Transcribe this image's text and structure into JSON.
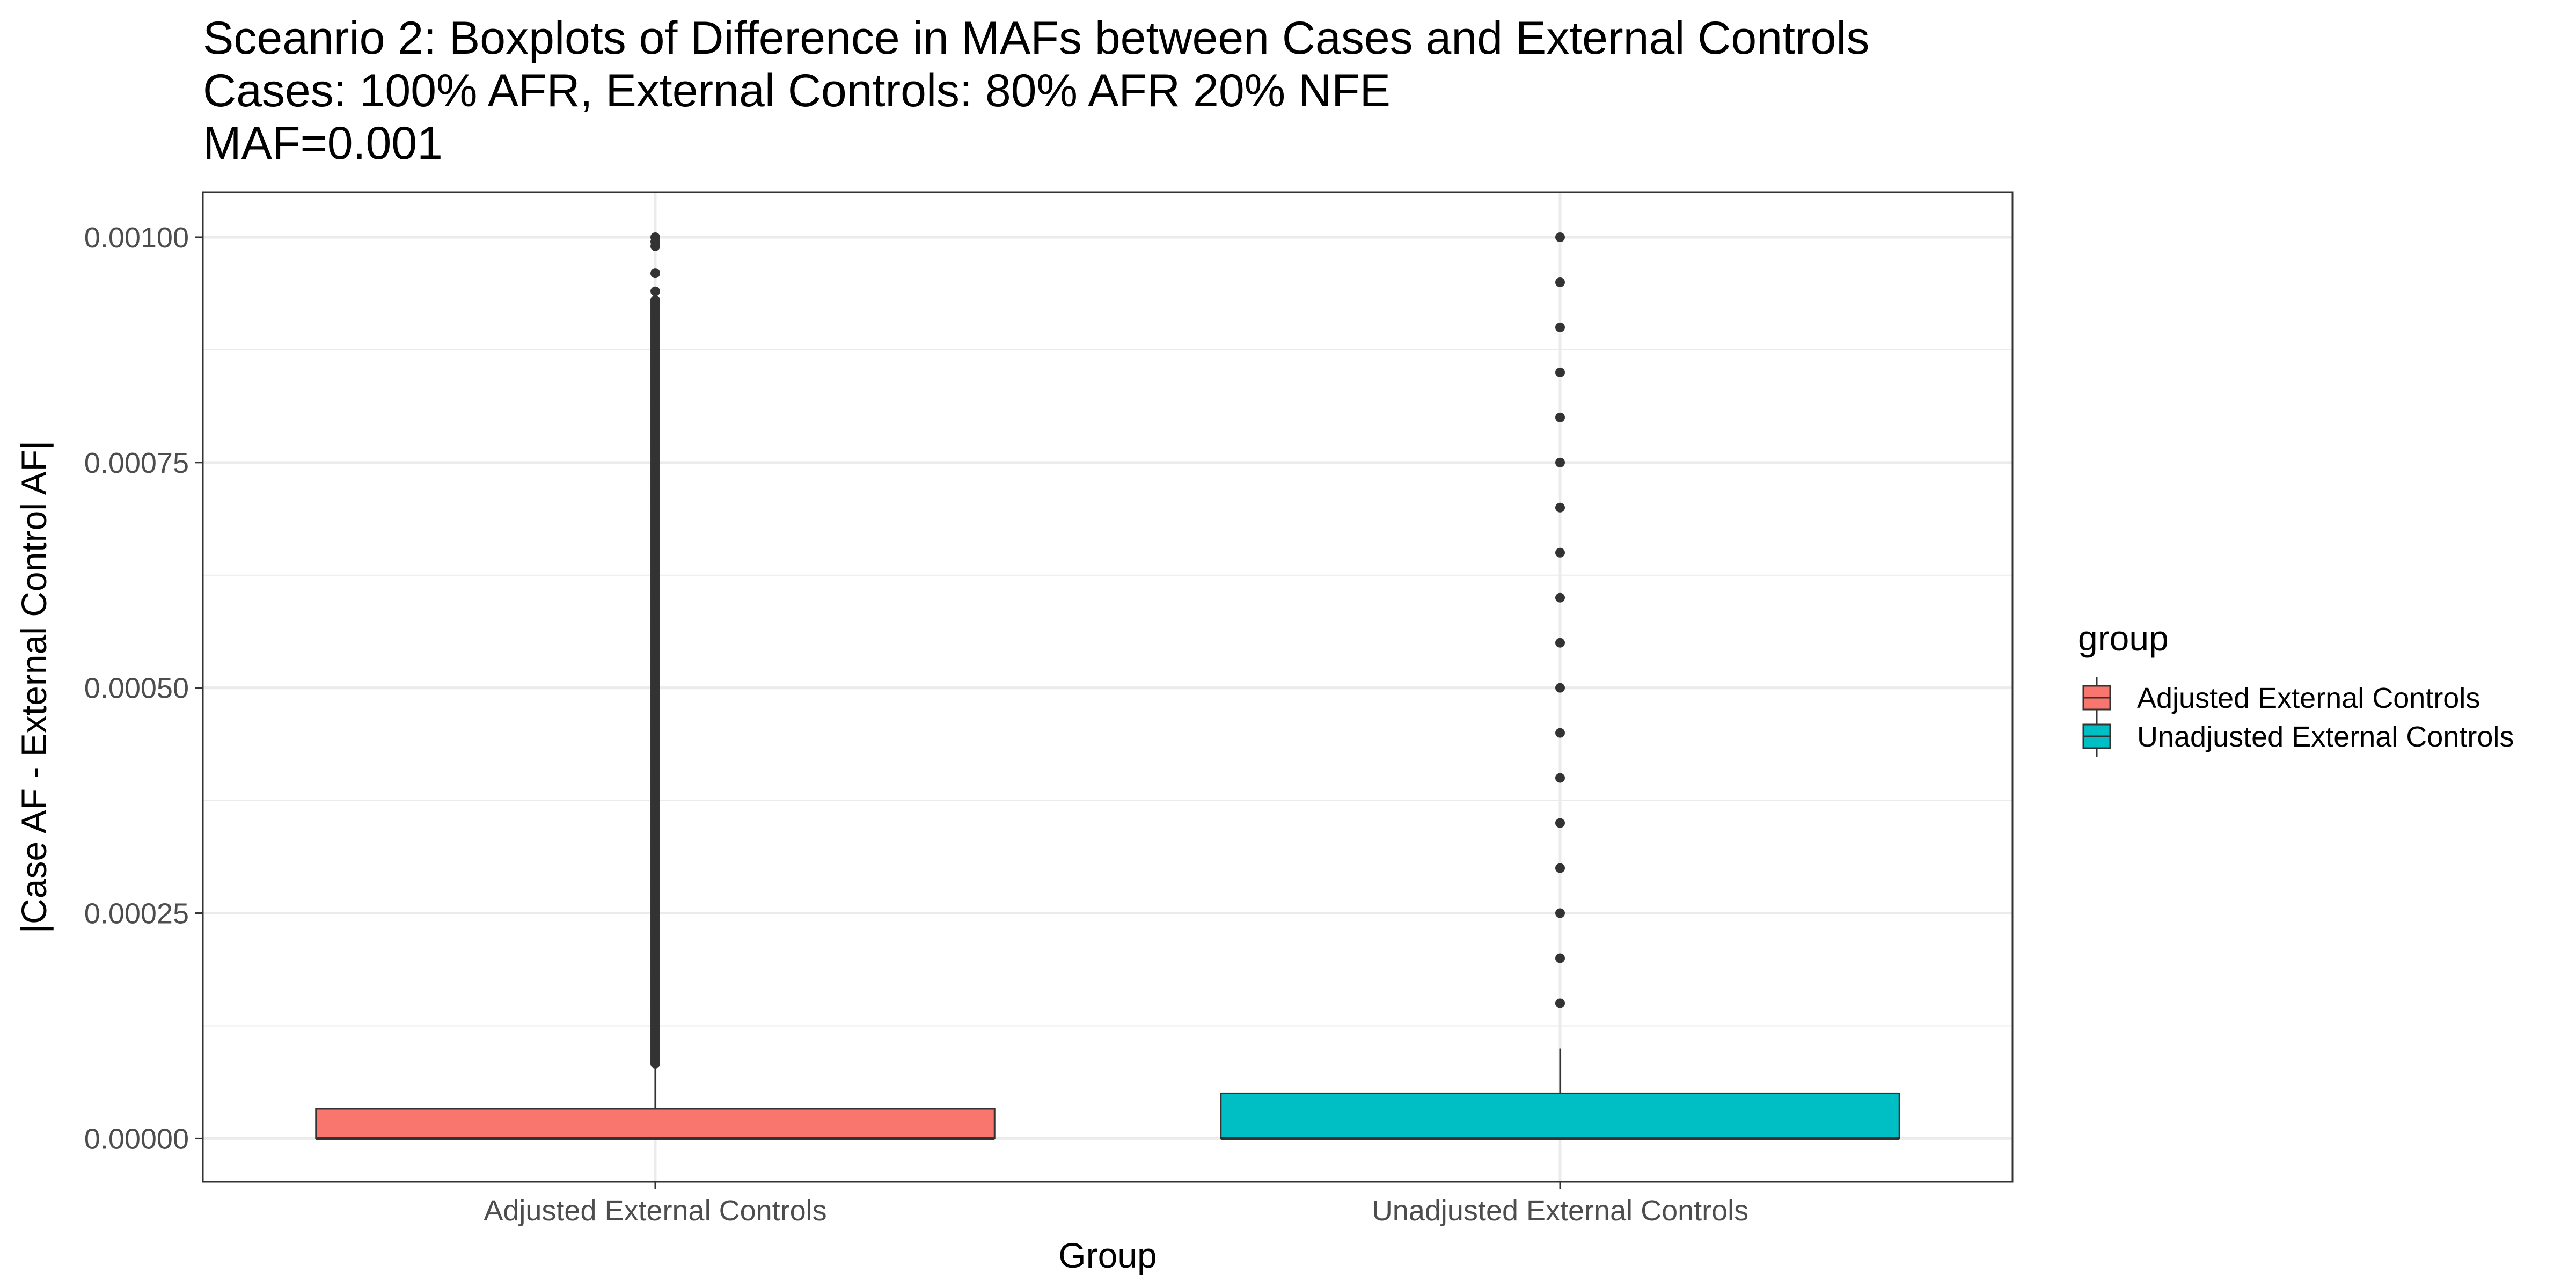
{
  "chart_data": {
    "type": "boxplot",
    "title_lines": [
      "Sceanrio 2: Boxplots of Difference in MAFs between Cases and External Controls",
      "Cases: 100% AFR, External Controls: 80% AFR 20% NFE",
      "MAF=0.001"
    ],
    "xlabel": "Group",
    "ylabel": "|Case AF - External Control AF|",
    "ylim": [
      -4.8e-05,
      0.00105
    ],
    "yticks": [
      0,
      0.00025,
      0.0005,
      0.00075,
      0.001
    ],
    "ytick_labels": [
      "0.00000",
      "0.00025",
      "0.00050",
      "0.00075",
      "0.00100"
    ],
    "categories": [
      "Adjusted External Controls",
      "Unadjusted External Controls"
    ],
    "legend": {
      "title": "group",
      "placement": "right",
      "items": [
        "Adjusted External Controls",
        "Unadjusted External Controls"
      ]
    },
    "grid": true,
    "series": [
      {
        "name": "Adjusted External Controls",
        "color": "#F8766D",
        "q1": 0,
        "median": 0,
        "q3": 3.3e-05,
        "whisker_low": 0,
        "whisker_high": 8.3e-05,
        "outlier_range": [
          8.3e-05,
          0.00093
        ],
        "outlier_extra": [
          0.00094,
          0.00096,
          0.00099,
          0.000995,
          0.001
        ]
      },
      {
        "name": "Unadjusted External Controls",
        "color": "#00BFC4",
        "q1": 0,
        "median": 0,
        "q3": 5e-05,
        "whisker_low": 0,
        "whisker_high": 0.0001,
        "outliers": [
          0.00015,
          0.0002,
          0.00025,
          0.0003,
          0.00035,
          0.0004,
          0.00045,
          0.0005,
          0.00055,
          0.0006,
          0.00065,
          0.0007,
          0.00075,
          0.0008,
          0.00085,
          0.0009,
          0.00095,
          0.001
        ]
      }
    ]
  }
}
